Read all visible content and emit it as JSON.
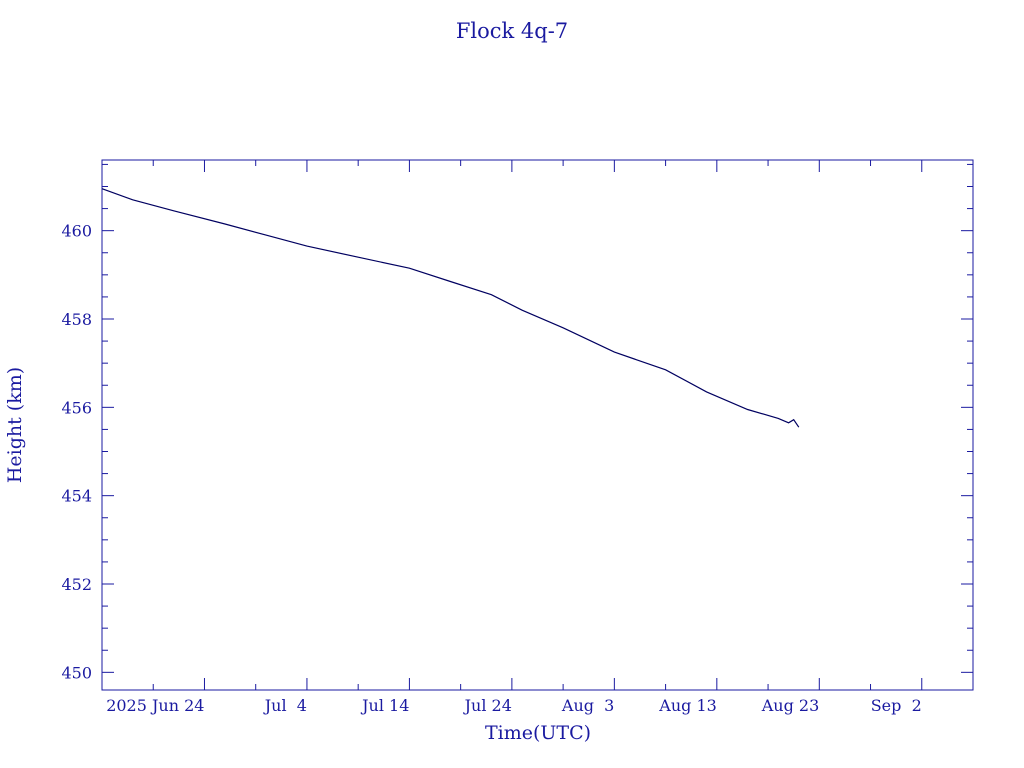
{
  "chart_data": {
    "type": "line",
    "title": "Flock 4q-7",
    "xlabel": "Time(UTC)",
    "ylabel": "Height (km)",
    "x_unit": "date (2025, UTC)",
    "xlim": [
      "2025-06-14",
      "2025-09-07"
    ],
    "ylim": [
      449.6,
      461.6
    ],
    "yticks": [
      {
        "value": 450,
        "label": "450"
      },
      {
        "value": 452,
        "label": "452"
      },
      {
        "value": 454,
        "label": "454"
      },
      {
        "value": 456,
        "label": "456"
      },
      {
        "value": 458,
        "label": "458"
      },
      {
        "value": 460,
        "label": "460"
      }
    ],
    "xticks": [
      {
        "date": "2025-06-24",
        "label": "2025 Jun 24"
      },
      {
        "date": "2025-07-04",
        "label": "Jul  4"
      },
      {
        "date": "2025-07-14",
        "label": "Jul 14"
      },
      {
        "date": "2025-07-24",
        "label": "Jul 24"
      },
      {
        "date": "2025-08-03",
        "label": "Aug  3"
      },
      {
        "date": "2025-08-13",
        "label": "Aug 13"
      },
      {
        "date": "2025-08-23",
        "label": "Aug 23"
      },
      {
        "date": "2025-09-02",
        "label": "Sep  2"
      }
    ],
    "grid": false,
    "colors": {
      "axis": "#1a1aa0",
      "line": "#000060",
      "text": "#1a1aa0"
    },
    "series": [
      {
        "x": [
          "2025-06-14",
          "2025-06-17",
          "2025-06-21",
          "2025-06-26",
          "2025-06-30",
          "2025-07-04",
          "2025-07-09",
          "2025-07-14",
          "2025-07-18",
          "2025-07-22",
          "2025-07-25",
          "2025-07-29",
          "2025-08-03",
          "2025-08-08",
          "2025-08-12",
          "2025-08-16",
          "2025-08-19",
          "2025-08-20",
          "2025-08-20T12:00",
          "2025-08-21"
        ],
        "y": [
          460.95,
          460.7,
          460.45,
          460.15,
          459.9,
          459.65,
          459.4,
          459.15,
          458.85,
          458.55,
          458.2,
          457.8,
          457.25,
          456.85,
          456.35,
          455.95,
          455.75,
          455.65,
          455.72,
          455.55
        ]
      }
    ]
  }
}
